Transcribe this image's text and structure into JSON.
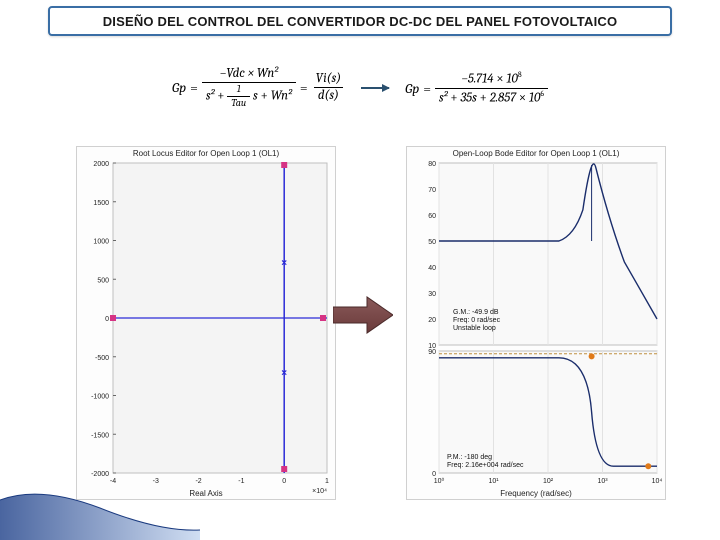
{
  "title": "DISEÑO DEL CONTROL DEL CONVERTIDOR DC-DC DEL PANEL FOTOVOLTAICO",
  "eq1": {
    "lhs": "Gp",
    "num": "−Vdc × Wn²",
    "den_a": "s²",
    "den_b": "s",
    "den_c": "Wn²",
    "inner_num": "1",
    "inner_den": "Tau",
    "rhs2_num": "Vi(s)",
    "rhs2_den": "d(s)"
  },
  "eq2": {
    "lhs": "Gp",
    "num_a": "−5.714",
    "num_exp": "8",
    "num_b": "10",
    "den_a": "s²",
    "den_b": "35s",
    "den_c": "2.857",
    "den_d": "10",
    "den_exp": "6"
  },
  "rootlocus": {
    "title": "Root Locus Editor for Open Loop 1 (OL1)",
    "xlabel": "Real Axis",
    "xexp": "×10⁴",
    "yticks": [
      [
        "2000",
        0
      ],
      [
        "1500",
        0.125
      ],
      [
        "1000",
        0.25
      ],
      [
        "500",
        0.375
      ],
      [
        "0",
        0.5
      ],
      [
        "-500",
        0.625
      ],
      [
        "-1000",
        0.75
      ],
      [
        "-1500",
        0.875
      ],
      [
        "-2000",
        1
      ]
    ],
    "xticks": [
      [
        "-4",
        0
      ],
      [
        "-3",
        0.2
      ],
      [
        "-2",
        0.4
      ],
      [
        "-1",
        0.6
      ],
      [
        "0",
        0.8
      ],
      [
        "1",
        1
      ]
    ],
    "colors": {
      "axis": "#333333",
      "frame": "#bfbfbf",
      "line": "#2b2bd6",
      "marker": "#d63384",
      "bg": "#f4f4f4"
    }
  },
  "bode": {
    "title": "Open-Loop Bode Editor for Open Loop 1 (OL1)",
    "xlabel": "Frequency (rad/sec)",
    "mag_yticks": [
      [
        "80",
        0
      ],
      [
        "70",
        0.143
      ],
      [
        "60",
        0.286
      ],
      [
        "50",
        0.429
      ],
      [
        "40",
        0.571
      ],
      [
        "30",
        0.714
      ],
      [
        "20",
        0.857
      ],
      [
        "10",
        1
      ]
    ],
    "phase_yticks": [
      [
        "90",
        0
      ],
      [
        "0",
        1
      ]
    ],
    "xticks": [
      [
        "10⁰",
        0
      ],
      [
        "10¹",
        0.25
      ],
      [
        "10²",
        0.5
      ],
      [
        "10³",
        0.75
      ],
      [
        "10⁴",
        1
      ]
    ],
    "gm": {
      "l1": "G.M.: -49.9 dB",
      "l2": "Freq: 0 rad/sec",
      "l3": "Unstable loop"
    },
    "pm": {
      "l1": "P.M.: -180 deg",
      "l2": "Freq: 2.16e+004 rad/sec"
    },
    "colors": {
      "mag_line": "#1a2d6b",
      "phase_line": "#1a2d6b",
      "marker": "#e07b1a",
      "frame": "#bfbfbf",
      "bg": "#f9f9f9"
    }
  },
  "arrow_color": "#7a4a4a",
  "swoosh": {
    "c1": "#2a4a8f",
    "c2": "#7aa0d8"
  }
}
